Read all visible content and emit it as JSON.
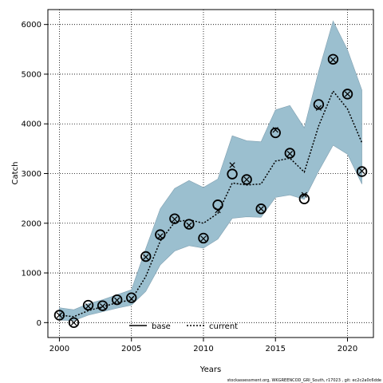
{
  "chart_data": {
    "type": "line",
    "xlabel": "Years",
    "ylabel": "Catch",
    "xlim": [
      1999.2,
      2021.8
    ],
    "ylim": [
      -300,
      6300
    ],
    "x_ticks": [
      2000,
      2005,
      2010,
      2015,
      2020
    ],
    "y_ticks": [
      0,
      1000,
      2000,
      3000,
      4000,
      5000,
      6000
    ],
    "grid": true,
    "legend_position": "bottom-center",
    "legend": [
      {
        "name": "base",
        "style": "solid"
      },
      {
        "name": "current",
        "style": "dotted"
      }
    ],
    "band": {
      "x": [
        2000,
        2001,
        2002,
        2003,
        2004,
        2005,
        2006,
        2007,
        2008,
        2009,
        2010,
        2011,
        2012,
        2013,
        2014,
        2015,
        2016,
        2017,
        2018,
        2019,
        2020,
        2021
      ],
      "lower": [
        50,
        40,
        150,
        220,
        290,
        350,
        630,
        1160,
        1440,
        1550,
        1500,
        1680,
        2100,
        2130,
        2120,
        2520,
        2570,
        2480,
        3050,
        3570,
        3390,
        2790
      ],
      "upper": [
        300,
        260,
        380,
        460,
        560,
        660,
        1490,
        2290,
        2700,
        2860,
        2720,
        2890,
        3760,
        3660,
        3640,
        4280,
        4370,
        3920,
        5060,
        6070,
        5490,
        4680
      ],
      "color": "#9bbfcf"
    },
    "series": [
      {
        "name": "current",
        "style": "dotted",
        "x": [
          2000,
          2001,
          2002,
          2003,
          2004,
          2005,
          2006,
          2007,
          2008,
          2009,
          2010,
          2011,
          2012,
          2013,
          2014,
          2015,
          2016,
          2017,
          2018,
          2019,
          2020,
          2021
        ],
        "values": [
          150,
          120,
          240,
          320,
          400,
          460,
          930,
          1640,
          2020,
          2070,
          2000,
          2200,
          2810,
          2770,
          2790,
          3250,
          3310,
          3030,
          3960,
          4660,
          4300,
          3620
        ]
      },
      {
        "name": "observed",
        "marker": "circle",
        "x": [
          2000,
          2001,
          2002,
          2003,
          2004,
          2005,
          2006,
          2007,
          2008,
          2009,
          2010,
          2011,
          2012,
          2013,
          2014,
          2015,
          2016,
          2017,
          2018,
          2019,
          2020,
          2021
        ],
        "values": [
          150,
          0,
          350,
          340,
          460,
          500,
          1330,
          1770,
          2090,
          1980,
          1700,
          2370,
          2990,
          2880,
          2290,
          3820,
          3410,
          2490,
          4390,
          5300,
          4600,
          3040
        ]
      },
      {
        "name": "predicted",
        "marker": "cross",
        "x": [
          2000,
          2001,
          2002,
          2003,
          2004,
          2005,
          2006,
          2007,
          2008,
          2009,
          2010,
          2011,
          2012,
          2013,
          2014,
          2015,
          2016,
          2017,
          2018,
          2019,
          2020,
          2021
        ],
        "values": [
          150,
          0,
          330,
          330,
          450,
          480,
          1320,
          1740,
          2080,
          1960,
          1690,
          2260,
          3170,
          2880,
          2290,
          3880,
          3400,
          2570,
          4320,
          5290,
          4600,
          3050
        ]
      }
    ]
  },
  "footer": {
    "credit": "stockassessment.org,  WKGREENCOD_GRI_South,  r17023 ,  git:  ec2c2a0c6dde"
  }
}
